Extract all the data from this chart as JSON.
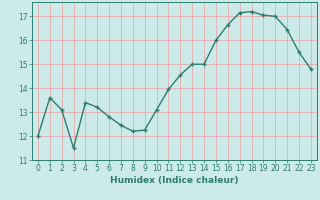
{
  "x": [
    0,
    1,
    2,
    3,
    4,
    5,
    6,
    7,
    8,
    9,
    10,
    11,
    12,
    13,
    14,
    15,
    16,
    17,
    18,
    19,
    20,
    21,
    22,
    23
  ],
  "y": [
    12.0,
    13.6,
    13.1,
    11.5,
    13.4,
    13.2,
    12.8,
    12.45,
    12.2,
    12.25,
    13.1,
    13.95,
    14.55,
    15.0,
    15.0,
    16.0,
    16.65,
    17.15,
    17.2,
    17.05,
    17.0,
    16.45,
    15.5,
    14.8
  ],
  "title": "",
  "xlabel": "Humidex (Indice chaleur)",
  "ylabel": "",
  "xlim": [
    -0.5,
    23.5
  ],
  "ylim": [
    11,
    17.6
  ],
  "yticks": [
    11,
    12,
    13,
    14,
    15,
    16,
    17
  ],
  "xticks": [
    0,
    1,
    2,
    3,
    4,
    5,
    6,
    7,
    8,
    9,
    10,
    11,
    12,
    13,
    14,
    15,
    16,
    17,
    18,
    19,
    20,
    21,
    22,
    23
  ],
  "line_color": "#2e7d6e",
  "bg_color": "#cceaea",
  "grid_color": "#e8aaaa",
  "marker": "+",
  "marker_size": 3.5,
  "linewidth": 1.0,
  "tick_fontsize": 5.5,
  "xlabel_fontsize": 6.5
}
